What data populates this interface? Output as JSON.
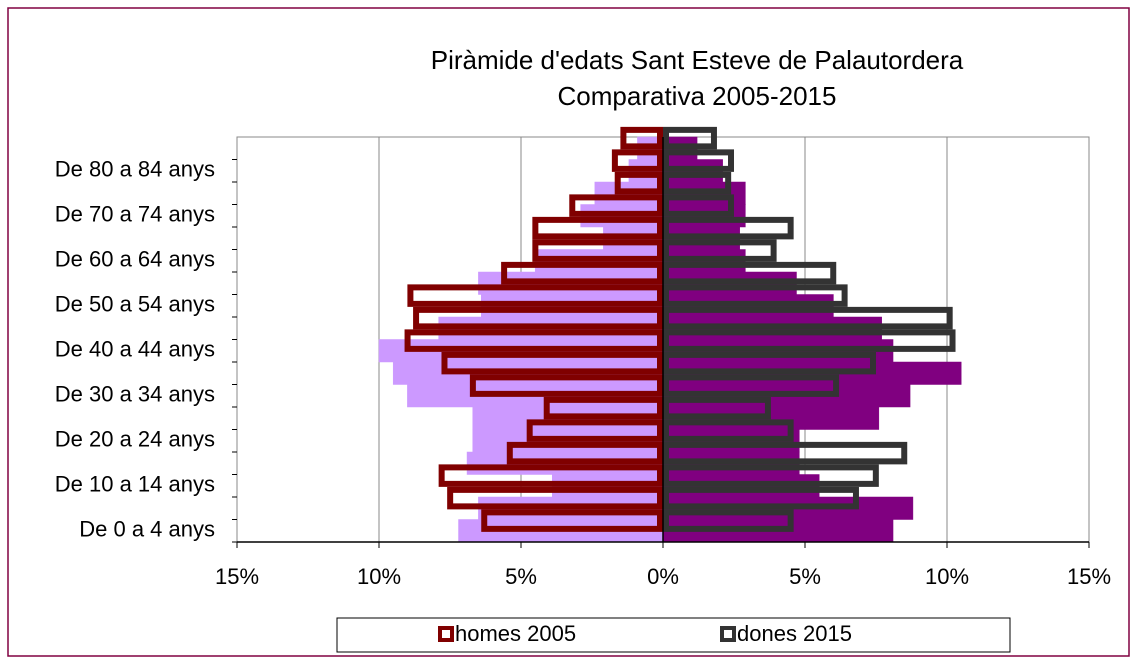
{
  "chart_data": {
    "type": "bar",
    "orientation": "horizontal",
    "title": "Piràmide d'edats Sant Esteve de Palautordera",
    "subtitle": "Comparativa 2005-2015",
    "categories": [
      "De 0 a 4 anys",
      null,
      "De 10 a 14 anys",
      null,
      "De 20 a 24 anys",
      null,
      "De 30 a 34 anys",
      null,
      "De 40 a 44 anys",
      null,
      "De 50 a 54 anys",
      null,
      "De 60 a 64 anys",
      null,
      "De 70 a 74 anys",
      null,
      "De 80 a 84 anys",
      null
    ],
    "series": [
      {
        "color": "#cc99ff",
        "style": "fill",
        "values": [
          -7.2,
          -6.5,
          -3.9,
          -6.9,
          -6.7,
          -6.7,
          -9.0,
          -9.5,
          -10.0,
          -7.9,
          -6.4,
          -6.5,
          -4.5,
          -2.1,
          -2.9,
          -2.4,
          -1.2,
          -0.9
        ]
      },
      {
        "color": "#800080",
        "style": "fill",
        "values": [
          8.1,
          8.8,
          5.5,
          4.8,
          4.8,
          7.6,
          8.7,
          10.5,
          8.1,
          7.7,
          6.0,
          4.7,
          2.9,
          2.7,
          2.9,
          2.9,
          2.1,
          1.2
        ]
      },
      {
        "name": "homes 2005",
        "color": "#800000",
        "style": "outline",
        "values": [
          -6.4,
          -7.6,
          -7.9,
          -5.5,
          -4.8,
          -4.2,
          -6.8,
          -7.8,
          -9.1,
          -8.8,
          -9.0,
          -5.7,
          -4.6,
          -4.6,
          -3.3,
          -1.7,
          -1.8,
          -1.5
        ]
      },
      {
        "name": "dones 2015",
        "color": "#333333",
        "style": "outline",
        "values": [
          4.6,
          6.9,
          7.6,
          8.6,
          4.6,
          3.8,
          6.2,
          7.5,
          10.3,
          10.2,
          6.5,
          6.1,
          4.0,
          4.6,
          2.5,
          2.4,
          2.5,
          1.9
        ]
      }
    ],
    "xlim": [
      -15,
      15
    ],
    "xticks": [
      {
        "value": -15,
        "label": "15%"
      },
      {
        "value": -10,
        "label": "10%"
      },
      {
        "value": -5,
        "label": "5%"
      },
      {
        "value": 0,
        "label": "0%"
      },
      {
        "value": 5,
        "label": "5%"
      },
      {
        "value": 10,
        "label": "10%"
      },
      {
        "value": 15,
        "label": "15%"
      }
    ],
    "grid": true,
    "legend": "bottom"
  }
}
